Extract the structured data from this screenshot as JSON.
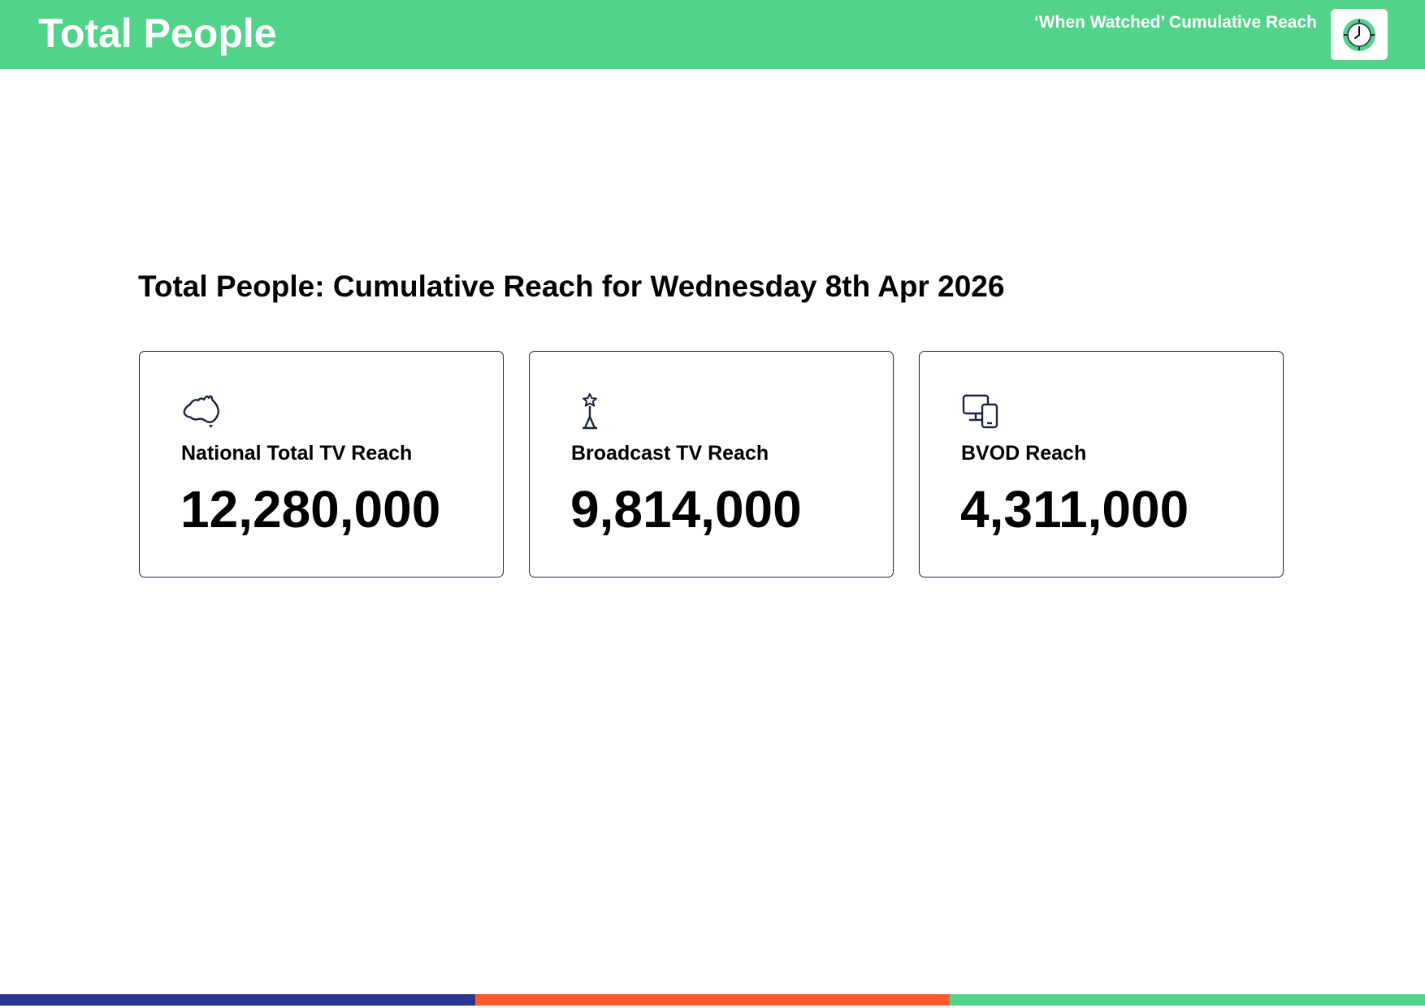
{
  "header": {
    "title": "Total People",
    "subtitle": "‘When Watched’ Cumulative Reach",
    "logo_icon": "clock-icon",
    "background_color": "#51d489"
  },
  "main": {
    "title": "Total People: Cumulative Reach for Wednesday 8th Apr 2026",
    "cards": [
      {
        "icon": "australia-map-icon",
        "label": "National Total TV Reach",
        "value": "12,280,000"
      },
      {
        "icon": "broadcast-tower-icon",
        "label": "Broadcast TV Reach",
        "value": "9,814,000"
      },
      {
        "icon": "devices-icon",
        "label": "BVOD Reach",
        "value": "4,311,000"
      }
    ]
  },
  "footer": {
    "bar_colors": [
      "#2b3590",
      "#fe5a2c",
      "#51d489"
    ]
  }
}
